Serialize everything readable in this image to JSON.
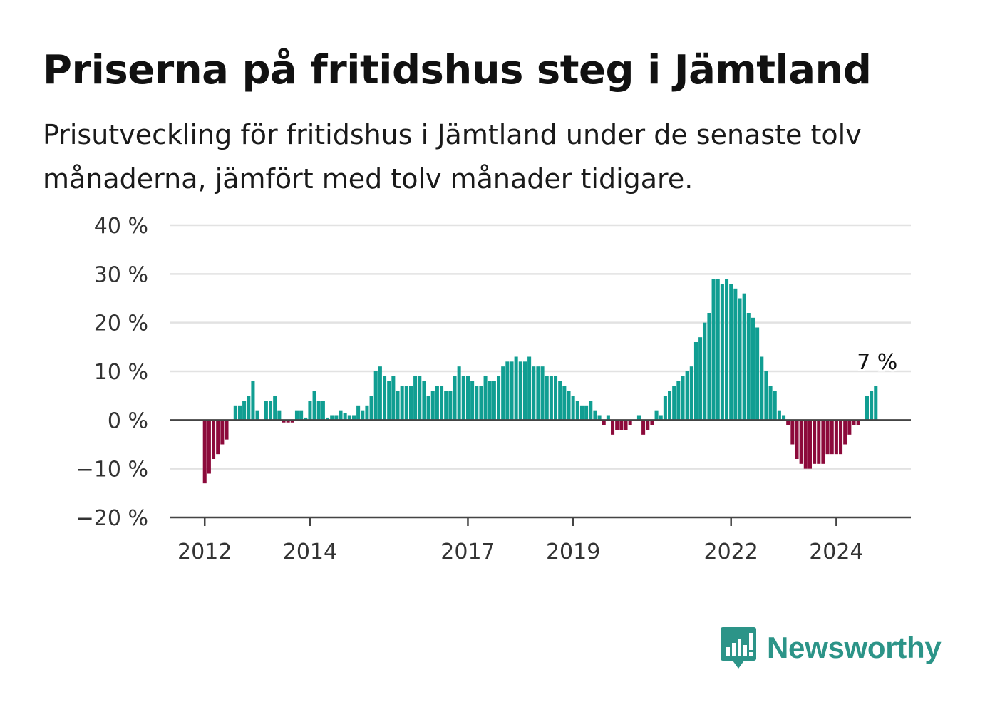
{
  "title": "Priserna på fritidshus steg i Jämtland",
  "subtitle": "Prisutveckling för fritidshus i Jämtland under de senaste tolv månaderna, jämfört med tolv månader tidigare.",
  "logo": {
    "text": "Newsworthy",
    "icon": "bar-chart-speech-bubble-icon"
  },
  "colors": {
    "positive": "#109e92",
    "negative": "#8c0a3b",
    "grid": "#e2e2e2",
    "axis": "#444444",
    "brand": "#2c9488"
  },
  "chart_data": {
    "type": "bar",
    "title": "Priserna på fritidshus steg i Jämtland",
    "subtitle": "Prisutveckling för fritidshus i Jämtland under de senaste tolv månaderna, jämfört med tolv månader tidigare.",
    "xlabel": "",
    "ylabel": "",
    "ylim": [
      -20,
      40
    ],
    "yticks": [
      -20,
      -10,
      0,
      10,
      20,
      30,
      40
    ],
    "ytick_labels": [
      "−20 %",
      "−10 %",
      "0 %",
      "10 %",
      "20 %",
      "30 %",
      "40 %"
    ],
    "xticks": [
      {
        "date": "2012-01",
        "label": "2012"
      },
      {
        "date": "2014-01",
        "label": "2014"
      },
      {
        "date": "2017-01",
        "label": "2017"
      },
      {
        "date": "2019-01",
        "label": "2019"
      },
      {
        "date": "2022-01",
        "label": "2022"
      },
      {
        "date": "2024-01",
        "label": "2024"
      }
    ],
    "grid": true,
    "legend": "none",
    "unit": "%",
    "end_label": "7 %",
    "start": "2012-01",
    "x_range": [
      "2011-05",
      "2025-06"
    ],
    "values": [
      -13,
      -11,
      -8,
      -7,
      -5,
      -4,
      0,
      3,
      3,
      4,
      5,
      8,
      2,
      0,
      4,
      4,
      5,
      2,
      -0.5,
      -0.5,
      -0.5,
      2,
      2,
      0.5,
      4,
      6,
      4,
      4,
      0.5,
      1,
      1,
      2,
      1.5,
      1,
      1,
      3,
      2,
      3,
      5,
      10,
      11,
      9,
      8,
      9,
      6,
      7,
      7,
      7,
      9,
      9,
      8,
      5,
      6,
      7,
      7,
      6,
      6,
      9,
      11,
      9,
      9,
      8,
      7,
      7,
      9,
      8,
      8,
      9,
      11,
      12,
      12,
      13,
      12,
      12,
      13,
      11,
      11,
      11,
      9,
      9,
      9,
      8,
      7,
      6,
      5,
      4,
      3,
      3,
      4,
      2,
      1,
      -1,
      1,
      -3,
      -2,
      -2,
      -2,
      -1,
      0,
      1,
      -3,
      -2,
      -1,
      2,
      1,
      5,
      6,
      7,
      8,
      9,
      10,
      11,
      16,
      17,
      20,
      22,
      29,
      29,
      28,
      29,
      28,
      27,
      25,
      26,
      22,
      21,
      19,
      13,
      10,
      7,
      6,
      2,
      1,
      -1,
      -5,
      -8,
      -9,
      -10,
      -10,
      -9,
      -9,
      -9,
      -7,
      -7,
      -7,
      -7,
      -5,
      -3,
      -1,
      -1,
      0,
      5,
      6,
      7
    ]
  }
}
